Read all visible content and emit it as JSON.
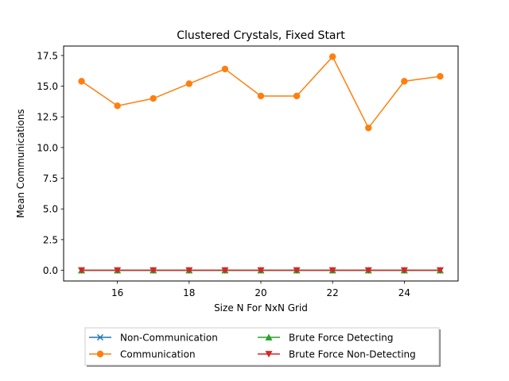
{
  "chart_data": {
    "type": "line",
    "title": "Clustered Crystals, Fixed Start",
    "xlabel": "Size N For NxN Grid",
    "ylabel": "Mean Communications",
    "x": [
      15,
      16,
      17,
      18,
      19,
      20,
      21,
      22,
      23,
      24,
      25
    ],
    "xlim": [
      14.5,
      25.5
    ],
    "ylim": [
      -0.87,
      18.27
    ],
    "xticks": [
      16,
      18,
      20,
      22,
      24
    ],
    "xtick_labels": [
      "16",
      "18",
      "20",
      "22",
      "24"
    ],
    "yticks": [
      0,
      2.5,
      5,
      7.5,
      10,
      12.5,
      15,
      17.5
    ],
    "ytick_labels": [
      "0.0",
      "2.5",
      "5.0",
      "7.5",
      "10.0",
      "12.5",
      "15.0",
      "17.5"
    ],
    "grid": false,
    "legend_placement": "below plot, center, 2 columns",
    "series": [
      {
        "name": "Non-Communication",
        "color": "#1f77b4",
        "marker": "x",
        "values": [
          0,
          0,
          0,
          0,
          0,
          0,
          0,
          0,
          0,
          0,
          0
        ]
      },
      {
        "name": "Communication",
        "color": "#ff7f0e",
        "marker": "circle",
        "values": [
          15.4,
          13.4,
          14.0,
          15.2,
          16.4,
          14.2,
          14.2,
          17.4,
          11.6,
          15.4,
          15.8
        ]
      },
      {
        "name": "Brute Force Detecting",
        "color": "#2ca02c",
        "marker": "triangle-up",
        "values": [
          0,
          0,
          0,
          0,
          0,
          0,
          0,
          0,
          0,
          0,
          0
        ]
      },
      {
        "name": "Brute Force Non-Detecting",
        "color": "#d62728",
        "marker": "triangle-down",
        "values": [
          0,
          0,
          0,
          0,
          0,
          0,
          0,
          0,
          0,
          0,
          0
        ]
      }
    ]
  }
}
